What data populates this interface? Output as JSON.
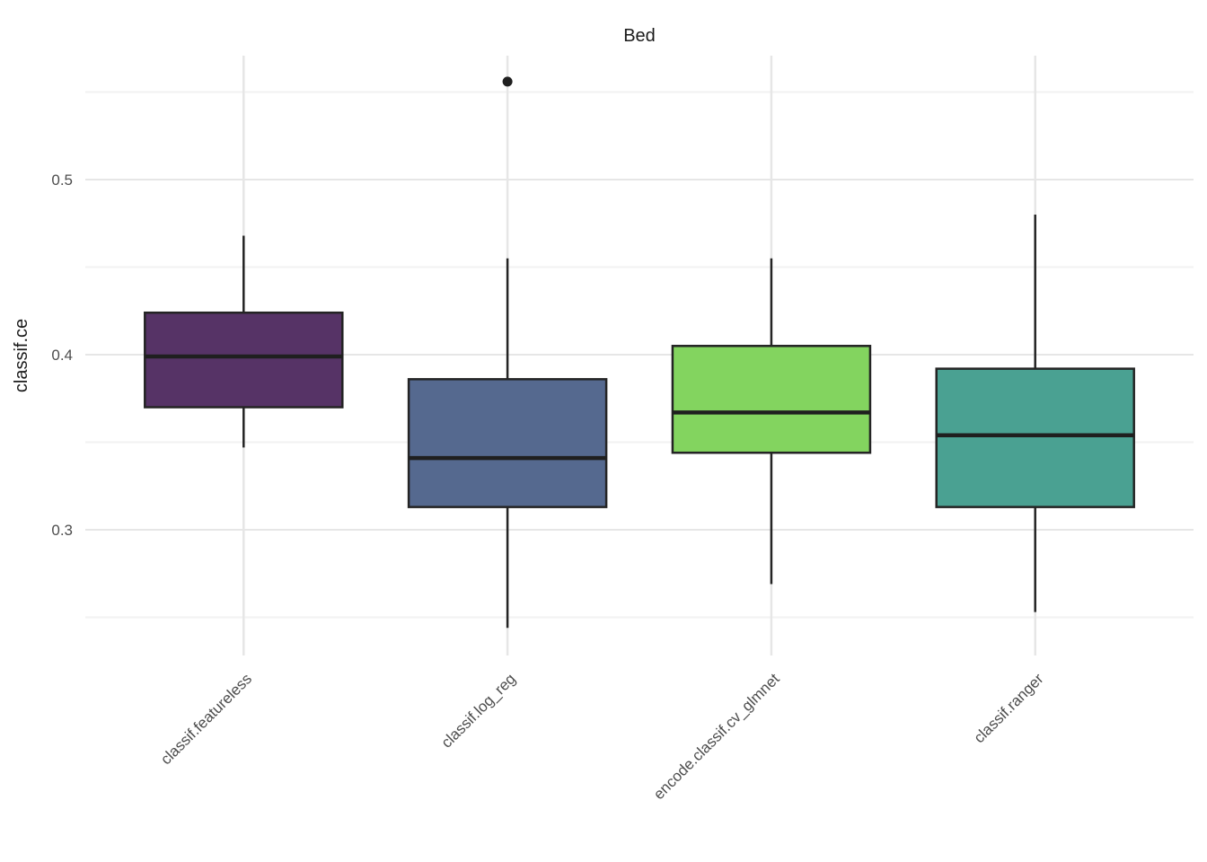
{
  "page": {
    "background": "#ffffff"
  },
  "chart_data": {
    "type": "boxplot",
    "title": "Bed",
    "xlabel": "",
    "ylabel": "classif.ce",
    "ylim": [
      0.2282,
      0.5708
    ],
    "yticks": [
      {
        "value": 0.3,
        "label": "0.3"
      },
      {
        "value": 0.4,
        "label": "0.4"
      },
      {
        "value": 0.5,
        "label": "0.5"
      }
    ],
    "yticks_minor": [
      0.25,
      0.35,
      0.45,
      0.55
    ],
    "grid": {
      "major": true,
      "minor": true,
      "vertical_major": true
    },
    "legend": "none",
    "categories": [
      "classif.featureless",
      "classif.log_reg",
      "encode.classif.cv_glmnet",
      "classif.ranger"
    ],
    "series": [
      {
        "name": "classif.featureless",
        "fill": "#563366",
        "whisker_low": 0.347,
        "q1": 0.37,
        "median": 0.399,
        "q3": 0.424,
        "whisker_high": 0.468,
        "outliers": []
      },
      {
        "name": "classif.log_reg",
        "fill": "#55698f",
        "whisker_low": 0.244,
        "q1": 0.313,
        "median": 0.341,
        "q3": 0.386,
        "whisker_high": 0.455,
        "outliers": [
          0.556
        ]
      },
      {
        "name": "encode.classif.cv_glmnet",
        "fill": "#83d45f",
        "whisker_low": 0.269,
        "q1": 0.344,
        "median": 0.367,
        "q3": 0.405,
        "whisker_high": 0.455,
        "outliers": []
      },
      {
        "name": "classif.ranger",
        "fill": "#4aa192",
        "whisker_low": 0.253,
        "q1": 0.313,
        "median": 0.354,
        "q3": 0.392,
        "whisker_high": 0.48,
        "outliers": []
      }
    ],
    "style": {
      "box_stroke": "#242424",
      "median_stroke": "#1f1f1f",
      "outlier_color": "#1f1f1f",
      "grid_major_color": "#e6e6e6",
      "grid_minor_color": "#f2f2f2",
      "title_color": "#1a1a1a",
      "axis_title_color": "#1a1a1a",
      "tick_label_color": "#4d4d4d",
      "background": "#ffffff"
    }
  }
}
